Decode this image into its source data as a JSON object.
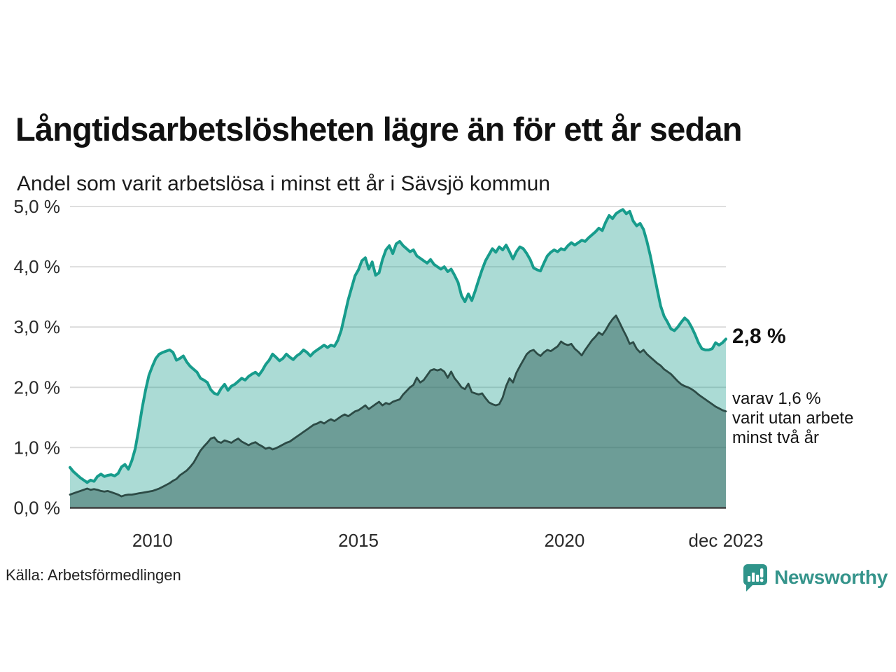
{
  "header": {
    "title": "Långtidsarbetslösheten lägre än för ett år sedan",
    "subtitle": "Andel som varit arbetslösa i minst ett år i Sävsjö kommun"
  },
  "footer": {
    "source": "Källa: Arbetsförmedlingen",
    "brand": "Newsworthy"
  },
  "colors": {
    "accent_teal": "#179c8c",
    "light_fill": "rgba(26,156,140,0.37)",
    "dark_line": "#2d4b46",
    "dark_fill": "rgba(52,100,94,0.52)",
    "gridline": "#d9d9d9",
    "axis": "#404040",
    "brand_teal": "#35948b"
  },
  "chart_data": {
    "type": "area",
    "title": "Långtidsarbetslösheten lägre än för ett år sedan",
    "subtitle": "Andel som varit arbetslösa i minst ett år i Sävsjö kommun",
    "x_start": "2008-01",
    "x_end": "2023-12",
    "frequency": "monthly",
    "ylim": [
      0,
      5
    ],
    "grid": "horizontal",
    "legend": "none",
    "y_ticks": [
      {
        "value": 0,
        "label": "0,0 %"
      },
      {
        "value": 1,
        "label": "1,0 %"
      },
      {
        "value": 2,
        "label": "2,0 %"
      },
      {
        "value": 3,
        "label": "3,0 %"
      },
      {
        "value": 4,
        "label": "4,0 %"
      },
      {
        "value": 5,
        "label": "5,0 %"
      }
    ],
    "x_ticks": [
      {
        "month_index": 24,
        "label": "2010"
      },
      {
        "month_index": 84,
        "label": "2015"
      },
      {
        "month_index": 144,
        "label": "2020"
      },
      {
        "month_index": 191,
        "label": "dec 2023"
      }
    ],
    "annotations": {
      "latest_total": "2,8 %",
      "note_lines": [
        "varav 1,6 %",
        "varit utan arbete",
        "minst två år"
      ]
    },
    "series": [
      {
        "id": "total-one-year",
        "name": "Andel som varit arbetslösa i minst ett år",
        "color": "#179c8c",
        "fill": "rgba(26,156,140,0.37)",
        "width": 4,
        "latest_value": 2.8,
        "values": [
          0.67,
          0.6,
          0.55,
          0.5,
          0.46,
          0.42,
          0.46,
          0.44,
          0.52,
          0.56,
          0.52,
          0.54,
          0.55,
          0.53,
          0.57,
          0.68,
          0.72,
          0.64,
          0.78,
          0.98,
          1.3,
          1.65,
          1.95,
          2.2,
          2.35,
          2.48,
          2.55,
          2.58,
          2.6,
          2.62,
          2.58,
          2.45,
          2.48,
          2.52,
          2.42,
          2.35,
          2.3,
          2.25,
          2.15,
          2.12,
          2.08,
          1.96,
          1.9,
          1.88,
          1.98,
          2.05,
          1.95,
          2.02,
          2.05,
          2.1,
          2.15,
          2.12,
          2.18,
          2.22,
          2.25,
          2.2,
          2.28,
          2.38,
          2.45,
          2.55,
          2.5,
          2.44,
          2.48,
          2.55,
          2.5,
          2.46,
          2.52,
          2.56,
          2.62,
          2.58,
          2.52,
          2.58,
          2.62,
          2.66,
          2.7,
          2.66,
          2.7,
          2.68,
          2.78,
          2.95,
          3.2,
          3.45,
          3.65,
          3.85,
          3.95,
          4.1,
          4.15,
          3.96,
          4.08,
          3.86,
          3.9,
          4.12,
          4.28,
          4.35,
          4.22,
          4.38,
          4.42,
          4.35,
          4.3,
          4.25,
          4.28,
          4.18,
          4.14,
          4.1,
          4.06,
          4.12,
          4.04,
          4.0,
          3.96,
          4.0,
          3.92,
          3.96,
          3.86,
          3.74,
          3.52,
          3.42,
          3.55,
          3.44,
          3.6,
          3.78,
          3.95,
          4.1,
          4.2,
          4.3,
          4.24,
          4.33,
          4.28,
          4.36,
          4.25,
          4.13,
          4.25,
          4.33,
          4.3,
          4.22,
          4.12,
          3.98,
          3.95,
          3.93,
          4.06,
          4.18,
          4.24,
          4.28,
          4.25,
          4.3,
          4.28,
          4.35,
          4.4,
          4.36,
          4.4,
          4.44,
          4.42,
          4.48,
          4.53,
          4.58,
          4.64,
          4.6,
          4.74,
          4.85,
          4.8,
          4.88,
          4.92,
          4.95,
          4.88,
          4.92,
          4.76,
          4.68,
          4.72,
          4.62,
          4.42,
          4.18,
          3.9,
          3.62,
          3.35,
          3.18,
          3.08,
          2.97,
          2.94,
          3.0,
          3.08,
          3.15,
          3.1,
          3.0,
          2.88,
          2.74,
          2.64,
          2.62,
          2.62,
          2.64,
          2.74,
          2.7,
          2.74,
          2.8
        ]
      },
      {
        "id": "two-years",
        "name": "varav varit utan arbete minst två år",
        "color": "#2d4b46",
        "fill": "rgba(52,100,94,0.52)",
        "width": 2.8,
        "latest_value": 1.6,
        "values": [
          0.22,
          0.24,
          0.26,
          0.28,
          0.3,
          0.32,
          0.3,
          0.31,
          0.3,
          0.28,
          0.27,
          0.28,
          0.26,
          0.24,
          0.22,
          0.19,
          0.21,
          0.22,
          0.22,
          0.23,
          0.24,
          0.25,
          0.26,
          0.27,
          0.28,
          0.3,
          0.32,
          0.35,
          0.38,
          0.41,
          0.45,
          0.48,
          0.54,
          0.58,
          0.62,
          0.68,
          0.75,
          0.85,
          0.95,
          1.02,
          1.08,
          1.15,
          1.17,
          1.1,
          1.08,
          1.12,
          1.1,
          1.08,
          1.12,
          1.15,
          1.1,
          1.07,
          1.04,
          1.07,
          1.09,
          1.05,
          1.02,
          0.98,
          1.0,
          0.97,
          0.99,
          1.02,
          1.05,
          1.08,
          1.1,
          1.14,
          1.18,
          1.22,
          1.26,
          1.3,
          1.34,
          1.38,
          1.4,
          1.43,
          1.4,
          1.44,
          1.47,
          1.44,
          1.48,
          1.52,
          1.55,
          1.52,
          1.56,
          1.6,
          1.62,
          1.66,
          1.7,
          1.64,
          1.68,
          1.72,
          1.76,
          1.7,
          1.74,
          1.72,
          1.76,
          1.78,
          1.8,
          1.88,
          1.94,
          2.0,
          2.04,
          2.16,
          2.08,
          2.12,
          2.2,
          2.28,
          2.3,
          2.28,
          2.3,
          2.26,
          2.16,
          2.26,
          2.15,
          2.08,
          2.0,
          1.97,
          2.06,
          1.92,
          1.9,
          1.88,
          1.9,
          1.82,
          1.75,
          1.72,
          1.7,
          1.72,
          1.83,
          2.02,
          2.15,
          2.08,
          2.24,
          2.35,
          2.45,
          2.55,
          2.6,
          2.62,
          2.56,
          2.52,
          2.58,
          2.62,
          2.6,
          2.64,
          2.68,
          2.76,
          2.72,
          2.7,
          2.72,
          2.64,
          2.59,
          2.53,
          2.62,
          2.7,
          2.78,
          2.84,
          2.91,
          2.87,
          2.95,
          3.05,
          3.13,
          3.19,
          3.08,
          2.96,
          2.85,
          2.72,
          2.75,
          2.64,
          2.58,
          2.62,
          2.55,
          2.5,
          2.45,
          2.4,
          2.36,
          2.3,
          2.26,
          2.22,
          2.16,
          2.1,
          2.05,
          2.02,
          2.0,
          1.97,
          1.93,
          1.88,
          1.84,
          1.8,
          1.76,
          1.72,
          1.68,
          1.65,
          1.62,
          1.6
        ]
      }
    ]
  }
}
